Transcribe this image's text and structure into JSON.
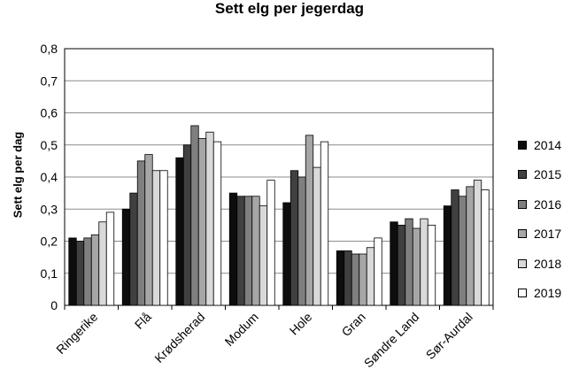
{
  "chart_data": {
    "type": "bar",
    "title": "Sett elg per jegerdag",
    "xlabel": "",
    "ylabel": "Sett elg per dag",
    "ylim": [
      0,
      0.8
    ],
    "yticks": [
      "0",
      "0,1",
      "0,2",
      "0,3",
      "0,4",
      "0,5",
      "0,6",
      "0,7",
      "0,8"
    ],
    "grid": true,
    "legend_position": "right",
    "categories": [
      "Ringerike",
      "Flå",
      "Krødsherad",
      "Modum",
      "Hole",
      "Gran",
      "Søndre Land",
      "Sør-Aurdal"
    ],
    "series": [
      {
        "name": "2014",
        "color": "#0d0d0d",
        "values": [
          0.21,
          0.3,
          0.46,
          0.35,
          0.32,
          0.17,
          0.26,
          0.31
        ]
      },
      {
        "name": "2015",
        "color": "#404040",
        "values": [
          0.2,
          0.35,
          0.5,
          0.34,
          0.42,
          0.17,
          0.25,
          0.36
        ]
      },
      {
        "name": "2016",
        "color": "#7f7f7f",
        "values": [
          0.21,
          0.45,
          0.56,
          0.34,
          0.4,
          0.16,
          0.27,
          0.34
        ]
      },
      {
        "name": "2017",
        "color": "#a6a6a6",
        "values": [
          0.22,
          0.47,
          0.52,
          0.34,
          0.53,
          0.16,
          0.24,
          0.37
        ]
      },
      {
        "name": "2018",
        "color": "#d9d9d9",
        "values": [
          0.26,
          0.42,
          0.54,
          0.31,
          0.43,
          0.18,
          0.27,
          0.39
        ]
      },
      {
        "name": "2019",
        "color": "#ffffff",
        "values": [
          0.29,
          0.42,
          0.51,
          0.39,
          0.51,
          0.21,
          0.25,
          0.36
        ]
      }
    ]
  }
}
